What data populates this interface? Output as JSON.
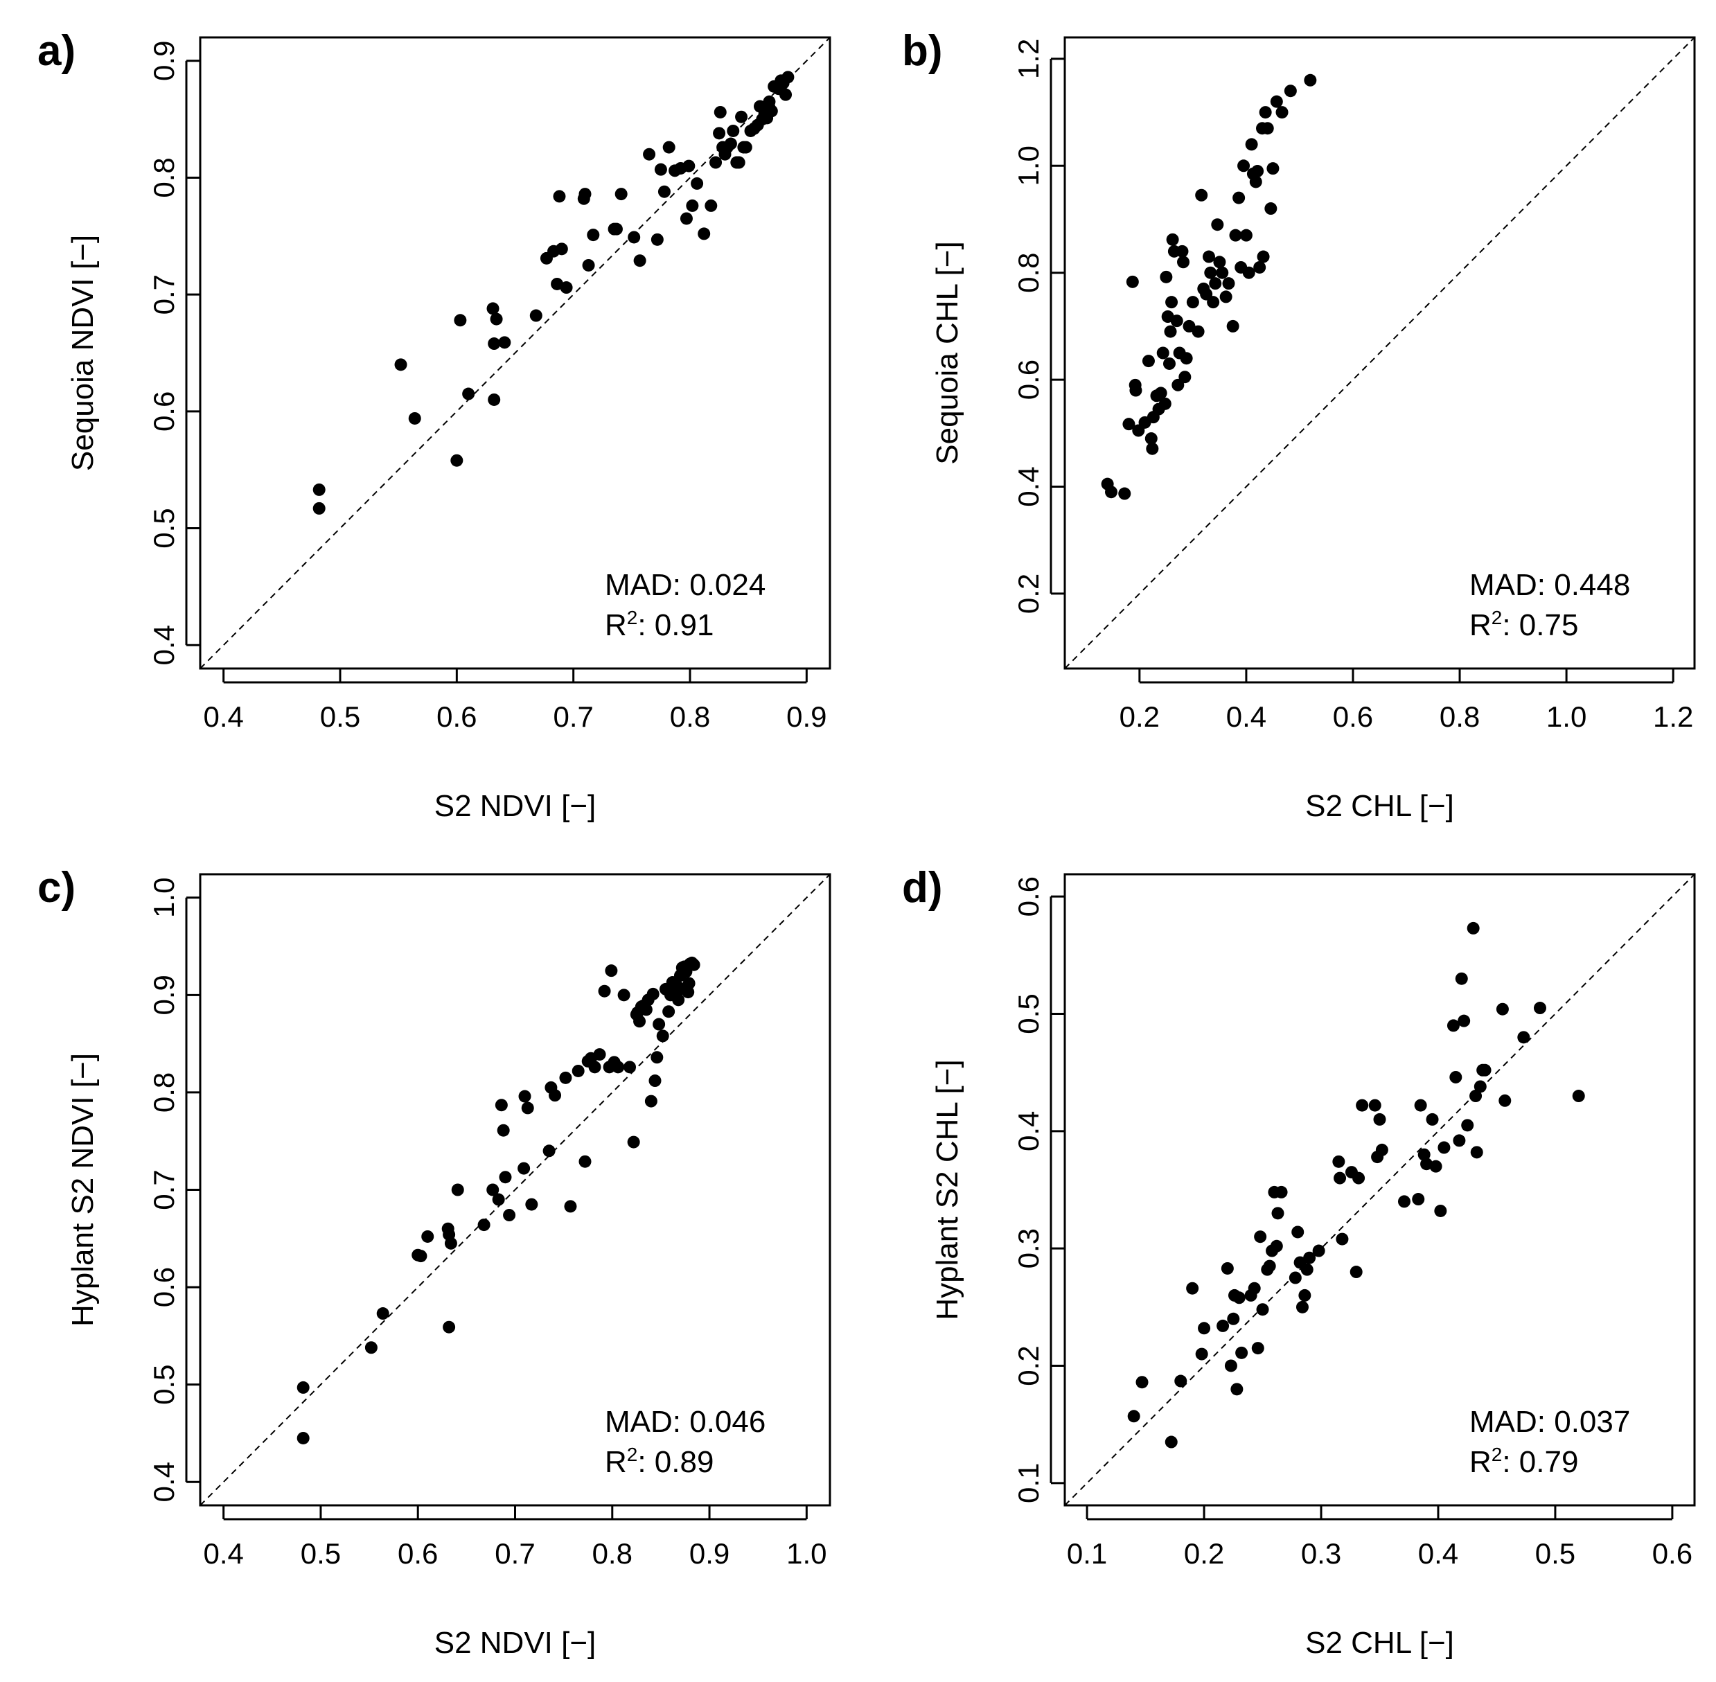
{
  "chart_data": [
    {
      "type": "scatter",
      "panel_label": "a)",
      "xlabel": "S2 NDVI [−]",
      "ylabel": "Sequoia NDVI [−]",
      "xlim": [
        0.38,
        0.92
      ],
      "ylim": [
        0.38,
        0.92
      ],
      "xticks": [
        "0.4",
        "0.5",
        "0.6",
        "0.7",
        "0.8",
        "0.9"
      ],
      "yticks": [
        "0.4",
        "0.5",
        "0.6",
        "0.7",
        "0.8",
        "0.9"
      ],
      "identity_line": true,
      "stats": {
        "mad": "MAD: 0.024",
        "r2_prefix": "R",
        "r2_sup": "2",
        "r2_value": ": 0.91"
      },
      "x": [
        0.482,
        0.482,
        0.552,
        0.564,
        0.6,
        0.603,
        0.61,
        0.631,
        0.632,
        0.632,
        0.634,
        0.641,
        0.668,
        0.677,
        0.683,
        0.686,
        0.688,
        0.69,
        0.694,
        0.709,
        0.71,
        0.713,
        0.717,
        0.735,
        0.737,
        0.741,
        0.752,
        0.757,
        0.765,
        0.772,
        0.775,
        0.778,
        0.782,
        0.787,
        0.792,
        0.797,
        0.799,
        0.802,
        0.806,
        0.812,
        0.818,
        0.822,
        0.825,
        0.826,
        0.828,
        0.83,
        0.832,
        0.835,
        0.837,
        0.84,
        0.842,
        0.844,
        0.846,
        0.848,
        0.852,
        0.855,
        0.858,
        0.86,
        0.862,
        0.864,
        0.866,
        0.868,
        0.87,
        0.872,
        0.874,
        0.876,
        0.878,
        0.88,
        0.882,
        0.884,
        0.868,
        0.879
      ],
      "y": [
        0.533,
        0.517,
        0.64,
        0.594,
        0.558,
        0.678,
        0.615,
        0.688,
        0.658,
        0.61,
        0.679,
        0.659,
        0.682,
        0.731,
        0.737,
        0.709,
        0.784,
        0.739,
        0.706,
        0.782,
        0.786,
        0.725,
        0.751,
        0.756,
        0.756,
        0.786,
        0.749,
        0.729,
        0.82,
        0.747,
        0.807,
        0.788,
        0.826,
        0.806,
        0.808,
        0.765,
        0.81,
        0.776,
        0.795,
        0.752,
        0.776,
        0.813,
        0.838,
        0.856,
        0.826,
        0.82,
        0.826,
        0.829,
        0.84,
        0.813,
        0.813,
        0.852,
        0.826,
        0.826,
        0.84,
        0.842,
        0.845,
        0.861,
        0.85,
        0.855,
        0.851,
        0.86,
        0.857,
        0.878,
        0.878,
        0.876,
        0.883,
        0.881,
        0.871,
        0.886,
        0.865,
        0.88
      ]
    },
    {
      "type": "scatter",
      "panel_label": "b)",
      "xlabel": "S2 CHL [−]",
      "ylabel": "Sequoia CHL [−]",
      "xlim": [
        0.06,
        1.24
      ],
      "ylim": [
        0.06,
        1.24
      ],
      "xticks": [
        "0.2",
        "0.4",
        "0.6",
        "0.8",
        "1.0",
        "1.2"
      ],
      "yticks": [
        "0.2",
        "0.4",
        "0.6",
        "0.8",
        "1.0",
        "1.2"
      ],
      "identity_line": true,
      "stats": {
        "mad": "MAD: 0.448",
        "r2_prefix": "R",
        "r2_sup": "2",
        "r2_value": ": 0.75"
      },
      "x": [
        0.14,
        0.147,
        0.172,
        0.18,
        0.187,
        0.192,
        0.193,
        0.198,
        0.21,
        0.217,
        0.222,
        0.224,
        0.226,
        0.232,
        0.236,
        0.24,
        0.244,
        0.248,
        0.25,
        0.253,
        0.256,
        0.258,
        0.26,
        0.262,
        0.265,
        0.27,
        0.272,
        0.275,
        0.28,
        0.282,
        0.285,
        0.288,
        0.293,
        0.3,
        0.31,
        0.316,
        0.32,
        0.325,
        0.33,
        0.333,
        0.338,
        0.342,
        0.346,
        0.35,
        0.355,
        0.362,
        0.367,
        0.375,
        0.38,
        0.386,
        0.39,
        0.395,
        0.4,
        0.405,
        0.41,
        0.413,
        0.418,
        0.421,
        0.425,
        0.43,
        0.432,
        0.436,
        0.44,
        0.446,
        0.45,
        0.457,
        0.467,
        0.483,
        0.52
      ],
      "y": [
        0.405,
        0.39,
        0.387,
        0.517,
        0.783,
        0.59,
        0.58,
        0.505,
        0.52,
        0.635,
        0.49,
        0.471,
        0.53,
        0.57,
        0.545,
        0.575,
        0.65,
        0.555,
        0.792,
        0.718,
        0.63,
        0.69,
        0.745,
        0.862,
        0.84,
        0.71,
        0.59,
        0.65,
        0.84,
        0.82,
        0.605,
        0.64,
        0.7,
        0.745,
        0.69,
        0.945,
        0.77,
        0.76,
        0.83,
        0.8,
        0.745,
        0.78,
        0.89,
        0.82,
        0.8,
        0.755,
        0.78,
        0.7,
        0.87,
        0.94,
        0.81,
        1.0,
        0.87,
        0.8,
        1.04,
        0.985,
        0.97,
        0.99,
        0.81,
        1.07,
        0.83,
        1.1,
        1.07,
        0.92,
        0.995,
        1.12,
        1.1,
        1.14,
        1.16
      ]
    },
    {
      "type": "scatter",
      "panel_label": "c)",
      "xlabel": "S2 NDVI [−]",
      "ylabel": "Hyplant S2 NDVI [−]",
      "xlim": [
        0.376,
        1.024
      ],
      "ylim": [
        0.376,
        1.024
      ],
      "xticks": [
        "0.4",
        "0.5",
        "0.6",
        "0.7",
        "0.8",
        "0.9",
        "1.0"
      ],
      "yticks": [
        "0.4",
        "0.5",
        "0.6",
        "0.7",
        "0.8",
        "0.9",
        "1.0"
      ],
      "identity_line": true,
      "stats": {
        "mad": "MAD: 0.046",
        "r2_prefix": "R",
        "r2_sup": "2",
        "r2_value": ": 0.89"
      },
      "x": [
        0.482,
        0.482,
        0.552,
        0.564,
        0.6,
        0.603,
        0.61,
        0.631,
        0.632,
        0.632,
        0.634,
        0.641,
        0.668,
        0.677,
        0.683,
        0.686,
        0.688,
        0.69,
        0.694,
        0.709,
        0.71,
        0.713,
        0.717,
        0.735,
        0.737,
        0.741,
        0.752,
        0.757,
        0.765,
        0.772,
        0.775,
        0.778,
        0.782,
        0.787,
        0.792,
        0.797,
        0.799,
        0.802,
        0.806,
        0.812,
        0.818,
        0.822,
        0.825,
        0.826,
        0.828,
        0.83,
        0.832,
        0.835,
        0.837,
        0.84,
        0.842,
        0.844,
        0.846,
        0.848,
        0.852,
        0.855,
        0.858,
        0.86,
        0.862,
        0.864,
        0.866,
        0.868,
        0.87,
        0.872,
        0.874,
        0.876,
        0.878,
        0.88,
        0.882,
        0.884,
        0.868,
        0.879
      ],
      "y": [
        0.497,
        0.445,
        0.538,
        0.573,
        0.633,
        0.632,
        0.652,
        0.66,
        0.654,
        0.559,
        0.645,
        0.7,
        0.664,
        0.7,
        0.69,
        0.787,
        0.761,
        0.713,
        0.674,
        0.722,
        0.796,
        0.784,
        0.685,
        0.74,
        0.805,
        0.797,
        0.815,
        0.683,
        0.822,
        0.729,
        0.832,
        0.835,
        0.826,
        0.839,
        0.904,
        0.826,
        0.925,
        0.831,
        0.826,
        0.9,
        0.826,
        0.749,
        0.88,
        0.882,
        0.873,
        0.888,
        0.889,
        0.885,
        0.895,
        0.791,
        0.901,
        0.812,
        0.836,
        0.87,
        0.858,
        0.906,
        0.883,
        0.9,
        0.913,
        0.905,
        0.902,
        0.908,
        0.92,
        0.928,
        0.929,
        0.924,
        0.903,
        0.932,
        0.933,
        0.931,
        0.895,
        0.912
      ]
    },
    {
      "type": "scatter",
      "panel_label": "d)",
      "xlabel": "S2 CHL [−]",
      "ylabel": "Hyplant S2 CHL [−]",
      "xlim": [
        0.081,
        0.619
      ],
      "ylim": [
        0.081,
        0.619
      ],
      "xticks": [
        "0.1",
        "0.2",
        "0.3",
        "0.4",
        "0.5",
        "0.6"
      ],
      "yticks": [
        "0.1",
        "0.2",
        "0.3",
        "0.4",
        "0.5",
        "0.6"
      ],
      "identity_line": true,
      "stats": {
        "mad": "MAD: 0.037",
        "r2_prefix": "R",
        "r2_sup": "2",
        "r2_value": ": 0.79"
      },
      "x": [
        0.14,
        0.147,
        0.172,
        0.18,
        0.19,
        0.198,
        0.2,
        0.216,
        0.22,
        0.223,
        0.225,
        0.226,
        0.228,
        0.23,
        0.232,
        0.24,
        0.243,
        0.246,
        0.248,
        0.25,
        0.254,
        0.256,
        0.258,
        0.26,
        0.262,
        0.263,
        0.266,
        0.278,
        0.28,
        0.282,
        0.284,
        0.286,
        0.288,
        0.29,
        0.298,
        0.315,
        0.316,
        0.318,
        0.326,
        0.33,
        0.332,
        0.335,
        0.346,
        0.348,
        0.35,
        0.352,
        0.371,
        0.383,
        0.385,
        0.388,
        0.39,
        0.395,
        0.398,
        0.402,
        0.405,
        0.413,
        0.415,
        0.418,
        0.42,
        0.422,
        0.425,
        0.43,
        0.432,
        0.433,
        0.436,
        0.438,
        0.44,
        0.455,
        0.457,
        0.473,
        0.487,
        0.52
      ],
      "y": [
        0.157,
        0.186,
        0.135,
        0.187,
        0.266,
        0.21,
        0.232,
        0.234,
        0.283,
        0.2,
        0.24,
        0.26,
        0.18,
        0.258,
        0.211,
        0.26,
        0.266,
        0.215,
        0.31,
        0.248,
        0.282,
        0.285,
        0.298,
        0.348,
        0.302,
        0.33,
        0.348,
        0.275,
        0.314,
        0.288,
        0.25,
        0.26,
        0.282,
        0.292,
        0.298,
        0.374,
        0.36,
        0.308,
        0.365,
        0.28,
        0.36,
        0.422,
        0.422,
        0.378,
        0.41,
        0.384,
        0.34,
        0.342,
        0.422,
        0.38,
        0.372,
        0.41,
        0.37,
        0.332,
        0.386,
        0.49,
        0.446,
        0.392,
        0.53,
        0.494,
        0.405,
        0.573,
        0.43,
        0.382,
        0.438,
        0.452,
        0.452,
        0.504,
        0.426,
        0.48,
        0.505,
        0.43
      ]
    }
  ]
}
